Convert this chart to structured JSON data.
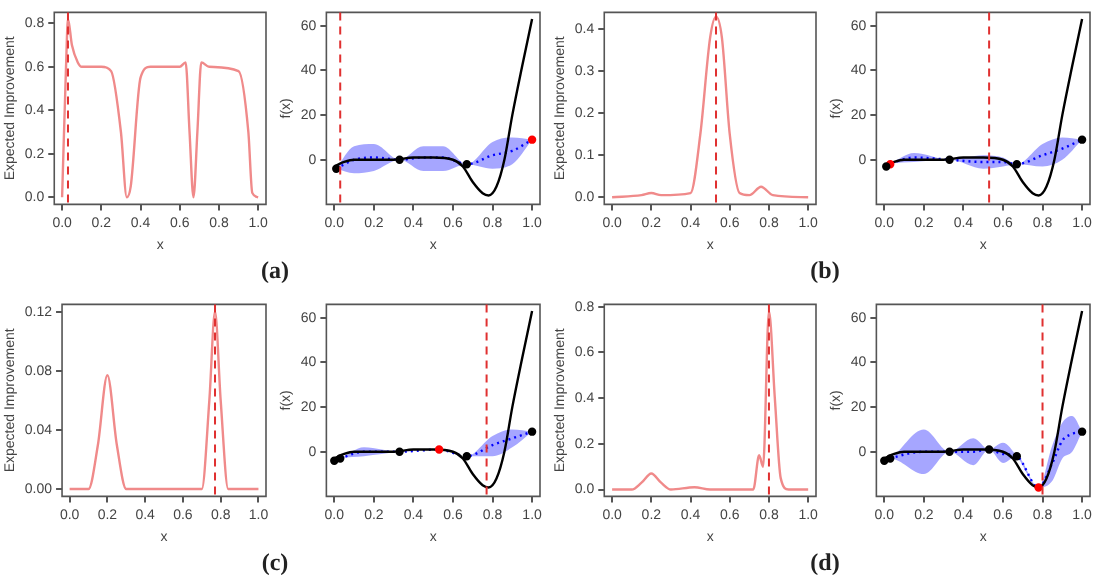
{
  "chart_data": [
    {
      "type": "line",
      "xlabel": "x",
      "ylabel": "Expected Improvement",
      "annotations": [
        "(a)"
      ],
      "legend": false,
      "grid": false,
      "xlim": [
        -0.04,
        1.04
      ],
      "ylim": [
        -0.033,
        0.85
      ],
      "xticks": [
        {
          "value": 0,
          "label": "0.0"
        },
        {
          "value": 0.2,
          "label": "0.2"
        },
        {
          "value": 0.4,
          "label": "0.4"
        },
        {
          "value": 0.6,
          "label": "0.6"
        },
        {
          "value": 0.8,
          "label": "0.8"
        },
        {
          "value": 1,
          "label": "1.0"
        }
      ],
      "yticks": [
        {
          "value": 0,
          "label": "0.0"
        },
        {
          "value": 0.2,
          "label": "0.2"
        },
        {
          "value": 0.4,
          "label": "0.4"
        },
        {
          "value": 0.6,
          "label": "0.6"
        },
        {
          "value": 0.8,
          "label": "0.8"
        }
      ],
      "ref_lines": [
        {
          "axis": "x",
          "value": 0.03,
          "color": "#e03030",
          "line_style": "dashed"
        }
      ],
      "series": [
        {
          "type": "line",
          "color": "#f08a8a",
          "x": [
            0,
            0.02,
            0.03,
            0.05,
            0.08,
            0.1,
            0.2,
            0.25,
            0.3,
            0.33,
            0.35,
            0.4,
            0.45,
            0.6,
            0.63,
            0.65,
            0.67,
            0.69,
            0.71,
            0.75,
            0.9,
            0.95,
            0.97,
            1
          ],
          "values": [
            0,
            0.6,
            0.82,
            0.7,
            0.62,
            0.6,
            0.6,
            0.58,
            0.3,
            0,
            0.05,
            0.55,
            0.6,
            0.6,
            0.62,
            0.3,
            0,
            0.3,
            0.62,
            0.6,
            0.58,
            0.3,
            0.02,
            0
          ]
        }
      ]
    },
    {
      "type": "line",
      "xlabel": "x",
      "ylabel": "f(x)",
      "legend": false,
      "grid": false,
      "xlim": [
        -0.04,
        1.04
      ],
      "ylim": [
        -20,
        66
      ],
      "xticks": [
        {
          "value": 0,
          "label": "0.0"
        },
        {
          "value": 0.2,
          "label": "0.2"
        },
        {
          "value": 0.4,
          "label": "0.4"
        },
        {
          "value": 0.6,
          "label": "0.6"
        },
        {
          "value": 0.8,
          "label": "0.8"
        },
        {
          "value": 1,
          "label": "1.0"
        }
      ],
      "yticks": [
        0,
        20,
        40,
        60
      ],
      "ref_lines": [
        {
          "axis": "x",
          "value": 0.03,
          "color": "#e03030",
          "line_style": "dashed"
        }
      ],
      "series": [
        {
          "type": "line",
          "color": "#000000",
          "x": [
            0,
            0.05,
            0.1,
            0.2,
            0.3,
            0.4,
            0.5,
            0.6,
            0.65,
            0.7,
            0.75,
            0.78,
            0.82,
            0.86,
            0.9,
            0.95,
            1
          ],
          "values": [
            -3,
            -1,
            0,
            0,
            0,
            1,
            1,
            0,
            -3,
            -10,
            -15,
            -16,
            -12,
            0,
            20,
            42,
            63
          ]
        },
        {
          "type": "line",
          "color": "#0000ff",
          "line_style": "dotted",
          "x": [
            0.01,
            0.1,
            0.2,
            0.33,
            0.45,
            0.55,
            0.67,
            0.8,
            0.9,
            1
          ],
          "values": [
            -4,
            0,
            1,
            0,
            1,
            1,
            -2,
            2,
            4,
            9
          ],
          "lower": [
            -4,
            -6,
            -5,
            0,
            -5,
            -5,
            -2,
            -4,
            -2,
            9
          ],
          "upper": [
            -4,
            6,
            7,
            0,
            6,
            6,
            -2,
            8,
            10,
            9
          ]
        },
        {
          "type": "scatter",
          "color": "#000000",
          "marker": "circle",
          "x": [
            0.01,
            0.33,
            0.67
          ],
          "values": [
            -4,
            0,
            -2
          ]
        },
        {
          "type": "scatter",
          "color": "#ff0000",
          "marker": "circle",
          "x": [
            1
          ],
          "values": [
            9
          ]
        }
      ]
    },
    {
      "type": "line",
      "xlabel": "x",
      "ylabel": "Expected Improvement",
      "annotations": [
        "(b)"
      ],
      "legend": false,
      "grid": false,
      "xlim": [
        -0.04,
        1.04
      ],
      "ylim": [
        -0.017,
        0.44
      ],
      "xticks": [
        {
          "value": 0,
          "label": "0.0"
        },
        {
          "value": 0.2,
          "label": "0.2"
        },
        {
          "value": 0.4,
          "label": "0.4"
        },
        {
          "value": 0.6,
          "label": "0.6"
        },
        {
          "value": 0.8,
          "label": "0.8"
        },
        {
          "value": 1,
          "label": "1.0"
        }
      ],
      "yticks": [
        {
          "value": 0,
          "label": "0.0"
        },
        {
          "value": 0.1,
          "label": "0.1"
        },
        {
          "value": 0.2,
          "label": "0.2"
        },
        {
          "value": 0.3,
          "label": "0.3"
        },
        {
          "value": 0.4,
          "label": "0.4"
        }
      ],
      "ref_lines": [
        {
          "axis": "x",
          "value": 0.53,
          "color": "#e03030",
          "line_style": "dashed"
        }
      ],
      "series": [
        {
          "type": "line",
          "color": "#f08a8a",
          "x": [
            0,
            0.15,
            0.2,
            0.25,
            0.4,
            0.45,
            0.5,
            0.53,
            0.56,
            0.6,
            0.65,
            0.7,
            0.76,
            0.82,
            1
          ],
          "values": [
            0,
            0.005,
            0.01,
            0.005,
            0.01,
            0.15,
            0.38,
            0.43,
            0.38,
            0.15,
            0.01,
            0.005,
            0.025,
            0.005,
            0
          ]
        }
      ]
    },
    {
      "type": "line",
      "xlabel": "x",
      "ylabel": "f(x)",
      "legend": false,
      "grid": false,
      "xlim": [
        -0.04,
        1.04
      ],
      "ylim": [
        -20,
        66
      ],
      "xticks": [
        {
          "value": 0,
          "label": "0.0"
        },
        {
          "value": 0.2,
          "label": "0.2"
        },
        {
          "value": 0.4,
          "label": "0.4"
        },
        {
          "value": 0.6,
          "label": "0.6"
        },
        {
          "value": 0.8,
          "label": "0.8"
        },
        {
          "value": 1,
          "label": "1.0"
        }
      ],
      "yticks": [
        0,
        20,
        40,
        60
      ],
      "ref_lines": [
        {
          "axis": "x",
          "value": 0.53,
          "color": "#e03030",
          "line_style": "dashed"
        }
      ],
      "series": [
        {
          "type": "line",
          "color": "#000000",
          "x": [
            0,
            0.05,
            0.1,
            0.2,
            0.3,
            0.4,
            0.5,
            0.6,
            0.65,
            0.7,
            0.75,
            0.78,
            0.82,
            0.86,
            0.9,
            0.95,
            1
          ],
          "values": [
            -3,
            -1,
            0,
            0,
            0,
            1,
            1,
            0,
            -3,
            -10,
            -15,
            -16,
            -12,
            0,
            20,
            42,
            63
          ]
        },
        {
          "type": "line",
          "color": "#0000ff",
          "line_style": "dotted",
          "x": [
            0.01,
            0.03,
            0.15,
            0.33,
            0.5,
            0.6,
            0.67,
            0.8,
            0.9,
            1
          ],
          "values": [
            -3,
            -2,
            1,
            0,
            -1,
            -1,
            -2,
            2,
            5,
            9
          ],
          "lower": [
            -3,
            -2,
            -1,
            0,
            -4,
            -3,
            -2,
            -3,
            0,
            9
          ],
          "upper": [
            -3,
            -2,
            3,
            0,
            2,
            1,
            -2,
            7,
            10,
            9
          ]
        },
        {
          "type": "scatter",
          "color": "#000000",
          "marker": "circle",
          "x": [
            0.01,
            0.33,
            0.67,
            1
          ],
          "values": [
            -3,
            0,
            -2,
            9
          ]
        },
        {
          "type": "scatter",
          "color": "#ff0000",
          "marker": "circle",
          "x": [
            0.03
          ],
          "values": [
            -2
          ]
        }
      ]
    },
    {
      "type": "line",
      "xlabel": "x",
      "ylabel": "Expected Improvement",
      "annotations": [
        "(c)"
      ],
      "legend": false,
      "grid": false,
      "xlim": [
        -0.04,
        1.04
      ],
      "ylim": [
        -0.005,
        0.125
      ],
      "xticks": [
        {
          "value": 0,
          "label": "0.0"
        },
        {
          "value": 0.2,
          "label": "0.2"
        },
        {
          "value": 0.4,
          "label": "0.4"
        },
        {
          "value": 0.6,
          "label": "0.6"
        },
        {
          "value": 0.8,
          "label": "0.8"
        },
        {
          "value": 1,
          "label": "1.0"
        }
      ],
      "yticks": [
        {
          "value": 0,
          "label": "0.00"
        },
        {
          "value": 0.04,
          "label": "0.04"
        },
        {
          "value": 0.08,
          "label": "0.08"
        },
        {
          "value": 0.12,
          "label": "0.12"
        }
      ],
      "ref_lines": [
        {
          "axis": "x",
          "value": 0.77,
          "color": "#e03030",
          "line_style": "dashed"
        }
      ],
      "series": [
        {
          "type": "line",
          "color": "#f08a8a",
          "x": [
            0,
            0.1,
            0.15,
            0.2,
            0.25,
            0.3,
            0.7,
            0.74,
            0.77,
            0.8,
            0.84,
            1
          ],
          "values": [
            0,
            0,
            0.03,
            0.077,
            0.03,
            0,
            0,
            0.06,
            0.12,
            0.06,
            0,
            0
          ]
        }
      ]
    },
    {
      "type": "line",
      "xlabel": "x",
      "ylabel": "f(x)",
      "legend": false,
      "grid": false,
      "xlim": [
        -0.04,
        1.04
      ],
      "ylim": [
        -20,
        66
      ],
      "xticks": [
        {
          "value": 0,
          "label": "0.0"
        },
        {
          "value": 0.2,
          "label": "0.2"
        },
        {
          "value": 0.4,
          "label": "0.4"
        },
        {
          "value": 0.6,
          "label": "0.6"
        },
        {
          "value": 0.8,
          "label": "0.8"
        },
        {
          "value": 1,
          "label": "1.0"
        }
      ],
      "yticks": [
        0,
        20,
        40,
        60
      ],
      "ref_lines": [
        {
          "axis": "x",
          "value": 0.77,
          "color": "#e03030",
          "line_style": "dashed"
        }
      ],
      "series": [
        {
          "type": "line",
          "color": "#000000",
          "x": [
            0,
            0.05,
            0.1,
            0.2,
            0.3,
            0.4,
            0.5,
            0.6,
            0.65,
            0.7,
            0.75,
            0.78,
            0.82,
            0.86,
            0.9,
            0.95,
            1
          ],
          "values": [
            -3,
            -1,
            0,
            0,
            0,
            1,
            1,
            0,
            -3,
            -10,
            -15,
            -16,
            -12,
            0,
            20,
            42,
            63
          ]
        },
        {
          "type": "line",
          "color": "#0000ff",
          "line_style": "dotted",
          "x": [
            0,
            0.03,
            0.15,
            0.33,
            0.53,
            0.67,
            0.8,
            0.9,
            1
          ],
          "values": [
            -4,
            -3,
            0,
            0,
            1,
            -2,
            3,
            6,
            9
          ],
          "lower": [
            -4,
            -3,
            -2,
            0,
            1,
            -2,
            -2,
            2,
            9
          ],
          "upper": [
            -4,
            -3,
            2,
            0,
            1,
            -2,
            7,
            10,
            9
          ]
        },
        {
          "type": "scatter",
          "color": "#000000",
          "marker": "circle",
          "x": [
            0,
            0.03,
            0.33,
            0.67,
            1
          ],
          "values": [
            -4,
            -3,
            0,
            -2,
            9
          ]
        },
        {
          "type": "scatter",
          "color": "#ff0000",
          "marker": "circle",
          "x": [
            0.53
          ],
          "values": [
            1
          ]
        }
      ]
    },
    {
      "type": "line",
      "xlabel": "x",
      "ylabel": "Expected Improvement",
      "annotations": [
        "(d)"
      ],
      "legend": false,
      "grid": false,
      "xlim": [
        -0.04,
        1.04
      ],
      "ylim": [
        -0.03,
        0.81
      ],
      "xticks": [
        {
          "value": 0,
          "label": "0.0"
        },
        {
          "value": 0.2,
          "label": "0.2"
        },
        {
          "value": 0.4,
          "label": "0.4"
        },
        {
          "value": 0.6,
          "label": "0.6"
        },
        {
          "value": 0.8,
          "label": "0.8"
        },
        {
          "value": 1,
          "label": "1.0"
        }
      ],
      "yticks": [
        {
          "value": 0,
          "label": "0.0"
        },
        {
          "value": 0.2,
          "label": "0.2"
        },
        {
          "value": 0.4,
          "label": "0.4"
        },
        {
          "value": 0.6,
          "label": "0.6"
        },
        {
          "value": 0.8,
          "label": "0.8"
        }
      ],
      "ref_lines": [
        {
          "axis": "x",
          "value": 0.8,
          "color": "#e03030",
          "line_style": "dashed"
        }
      ],
      "series": [
        {
          "type": "line",
          "color": "#f08a8a",
          "x": [
            0,
            0.1,
            0.15,
            0.2,
            0.25,
            0.3,
            0.42,
            0.5,
            0.72,
            0.75,
            0.77,
            0.8,
            0.83,
            0.86,
            0.9,
            1
          ],
          "values": [
            0,
            0,
            0.03,
            0.07,
            0.03,
            0,
            0.01,
            0,
            0,
            0.15,
            0.1,
            0.78,
            0.4,
            0.05,
            0,
            0
          ]
        }
      ]
    },
    {
      "type": "line",
      "xlabel": "x",
      "ylabel": "f(x)",
      "legend": false,
      "grid": false,
      "xlim": [
        -0.04,
        1.04
      ],
      "ylim": [
        -20,
        66
      ],
      "xticks": [
        {
          "value": 0,
          "label": "0.0"
        },
        {
          "value": 0.2,
          "label": "0.2"
        },
        {
          "value": 0.4,
          "label": "0.4"
        },
        {
          "value": 0.6,
          "label": "0.6"
        },
        {
          "value": 0.8,
          "label": "0.8"
        },
        {
          "value": 1,
          "label": "1.0"
        }
      ],
      "yticks": [
        0,
        20,
        40,
        60
      ],
      "ref_lines": [
        {
          "axis": "x",
          "value": 0.8,
          "color": "#e03030",
          "line_style": "dashed"
        }
      ],
      "series": [
        {
          "type": "line",
          "color": "#000000",
          "x": [
            0,
            0.05,
            0.1,
            0.2,
            0.3,
            0.4,
            0.5,
            0.6,
            0.65,
            0.7,
            0.75,
            0.78,
            0.82,
            0.86,
            0.9,
            0.95,
            1
          ],
          "values": [
            -3,
            -1,
            0,
            0,
            0,
            1,
            1,
            0,
            -3,
            -10,
            -15,
            -16,
            -12,
            0,
            20,
            42,
            63
          ]
        },
        {
          "type": "line",
          "color": "#0000ff",
          "line_style": "dotted",
          "x": [
            0,
            0.03,
            0.2,
            0.33,
            0.45,
            0.53,
            0.6,
            0.67,
            0.78,
            0.85,
            0.9,
            0.95,
            1
          ],
          "values": [
            -4,
            -3,
            0,
            0,
            0,
            1,
            -1,
            -2,
            -16,
            -5,
            5,
            8,
            9
          ],
          "lower": [
            -4,
            -3,
            -10,
            0,
            -6,
            1,
            -5,
            -2,
            -16,
            -13,
            -3,
            0,
            9
          ],
          "upper": [
            -4,
            -3,
            10,
            0,
            6,
            1,
            4,
            -2,
            -16,
            3,
            13,
            16,
            9
          ]
        },
        {
          "type": "scatter",
          "color": "#000000",
          "marker": "circle",
          "x": [
            0,
            0.03,
            0.33,
            0.53,
            0.67,
            1
          ],
          "values": [
            -4,
            -3,
            0,
            1,
            -2,
            9
          ]
        },
        {
          "type": "scatter",
          "color": "#ff0000",
          "marker": "circle",
          "x": [
            0.78
          ],
          "values": [
            -16
          ]
        }
      ]
    }
  ]
}
